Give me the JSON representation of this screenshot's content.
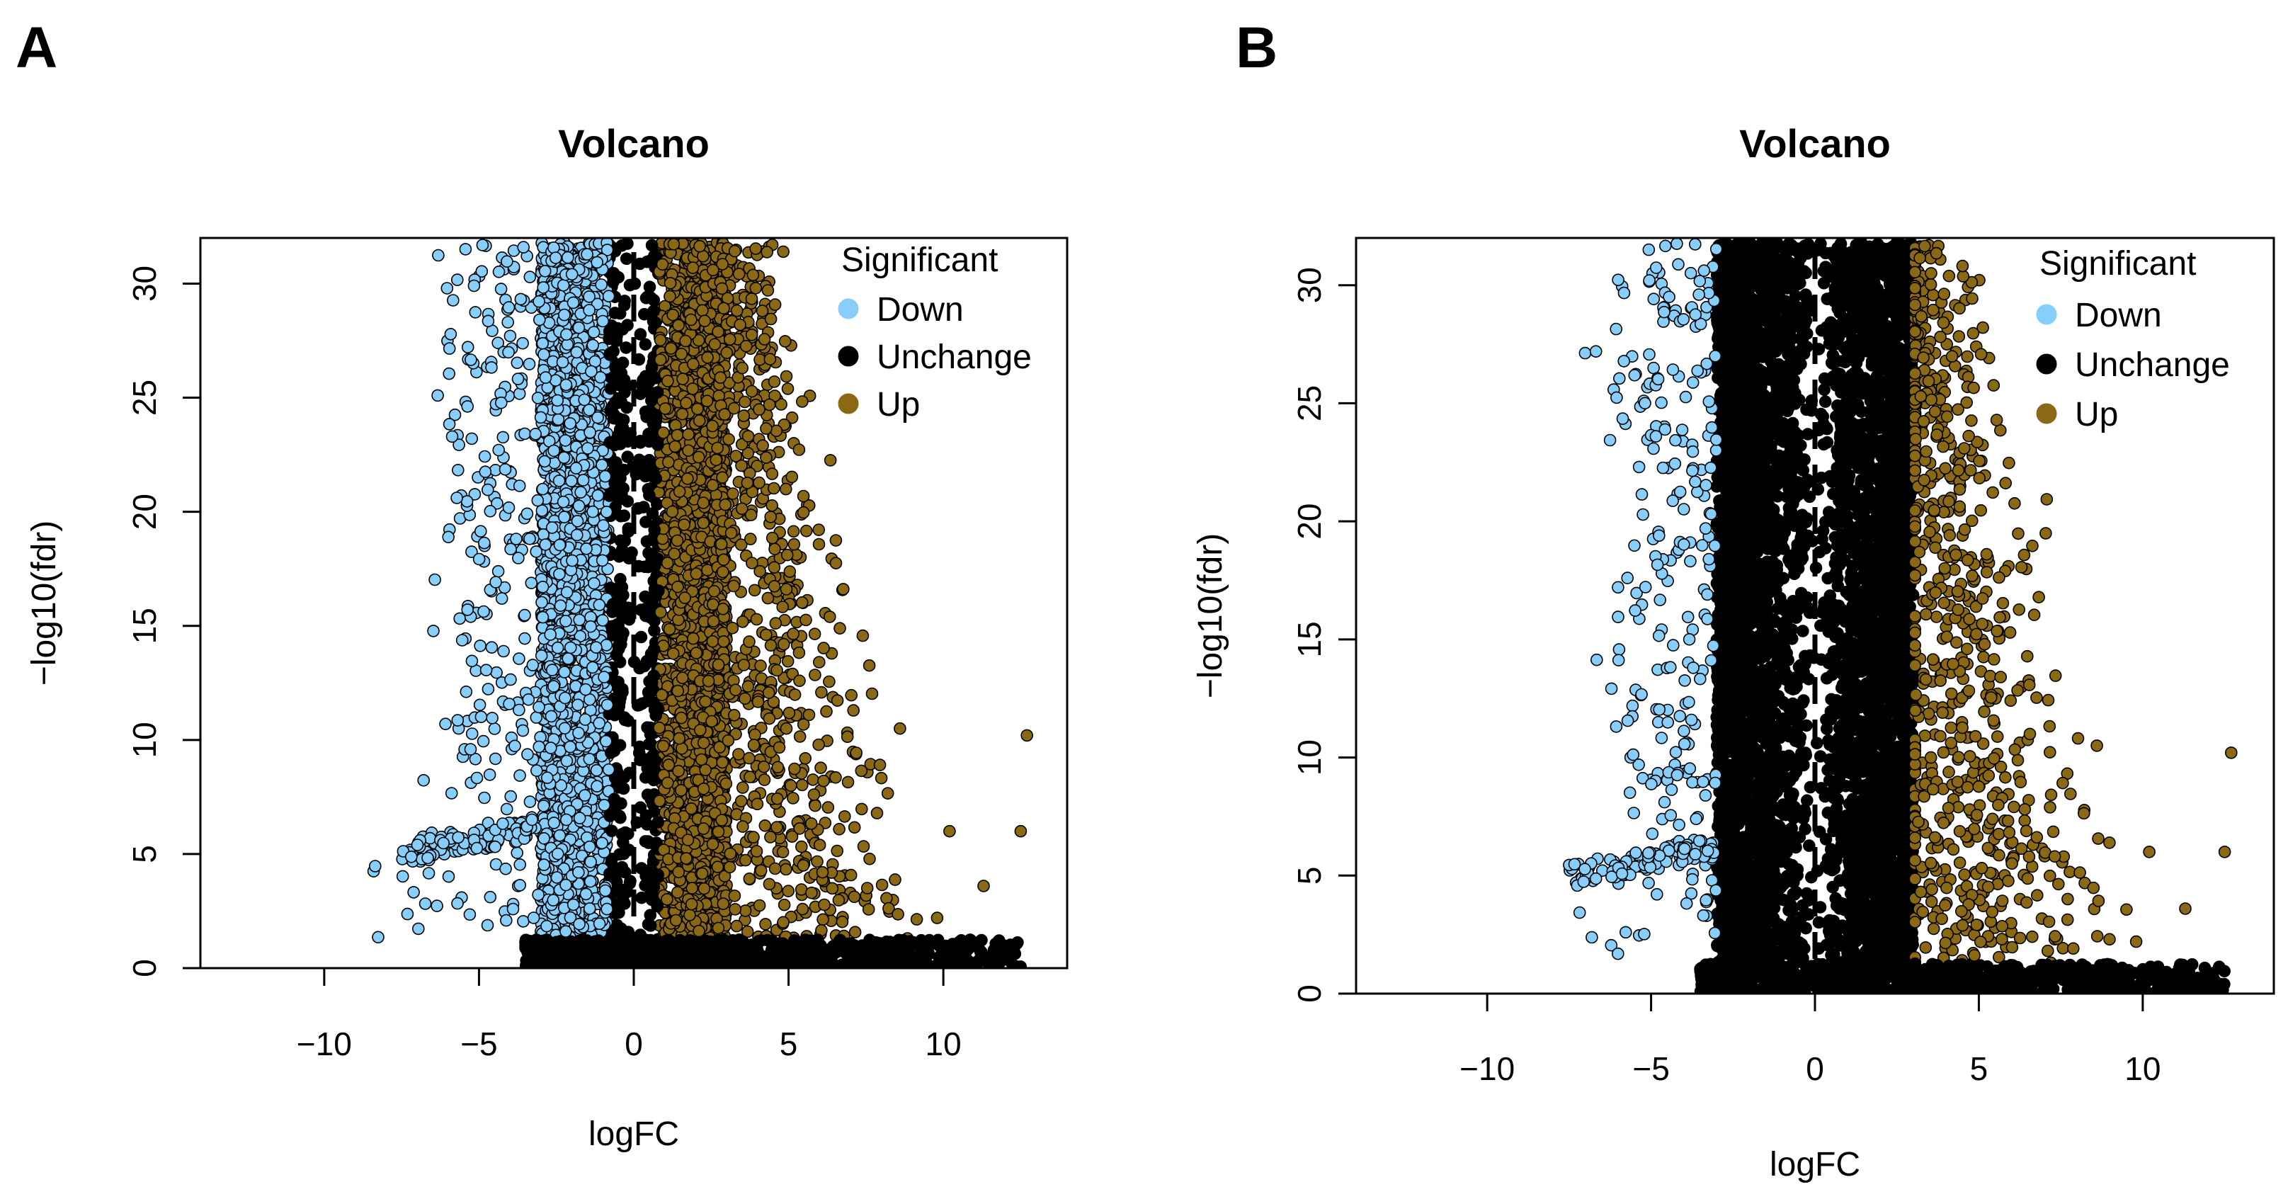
{
  "colors": {
    "down": "#87CEFA",
    "unchange": "#000000",
    "up": "#8B6914",
    "axis": "#000000"
  },
  "chart_data": [
    {
      "type": "scatter",
      "panel_label": "A",
      "title": "Volcano",
      "xlabel": "logFC",
      "ylabel": "−log10(fdr)",
      "xlim": [
        -14,
        14
      ],
      "ylim": [
        0,
        32
      ],
      "xticks": [
        -10,
        -5,
        0,
        5,
        10
      ],
      "yticks": [
        0,
        5,
        10,
        15,
        20,
        25,
        30
      ],
      "threshold_logfc": 0.8,
      "vline_x": 0,
      "legend": {
        "title": "Significant",
        "placement": "top-right",
        "entries": [
          "Down",
          "Unchange",
          "Up"
        ]
      },
      "series": [
        {
          "name": "Down",
          "description": "logFC < -0.8 and significant",
          "x_range": [
            -7.5,
            -0.8
          ],
          "y_range": [
            1,
            32
          ]
        },
        {
          "name": "Unchange",
          "description": "|logFC| <= 0.8 or not significant",
          "x_range": [
            -3.5,
            12.5
          ],
          "y_range": [
            0,
            32
          ]
        },
        {
          "name": "Up",
          "description": "logFC > 0.8 and significant",
          "x_range": [
            0.8,
            12.8
          ],
          "y_range": [
            1,
            32
          ]
        }
      ]
    },
    {
      "type": "scatter",
      "panel_label": "B",
      "title": "Volcano",
      "xlabel": "logFC",
      "ylabel": "−log10(fdr)",
      "xlim": [
        -14,
        14
      ],
      "ylim": [
        0,
        32
      ],
      "xticks": [
        -10,
        -5,
        0,
        5,
        10
      ],
      "yticks": [
        0,
        5,
        10,
        15,
        20,
        25,
        30
      ],
      "threshold_logfc": 3,
      "vline_x": 0,
      "legend": {
        "title": "Significant",
        "placement": "top-right",
        "entries": [
          "Down",
          "Unchange",
          "Up"
        ]
      },
      "series": [
        {
          "name": "Down",
          "description": "logFC < -3 and significant",
          "x_range": [
            -7.5,
            -3
          ],
          "y_range": [
            1,
            32
          ]
        },
        {
          "name": "Unchange",
          "description": "|logFC| <= 3 or not significant",
          "x_range": [
            -3.5,
            12.5
          ],
          "y_range": [
            0,
            32
          ]
        },
        {
          "name": "Up",
          "description": "logFC > 3 and significant",
          "x_range": [
            3,
            12.8
          ],
          "y_range": [
            1,
            32
          ]
        }
      ]
    }
  ]
}
